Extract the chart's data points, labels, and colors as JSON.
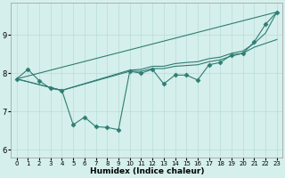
{
  "xlabel": "Humidex (Indice chaleur)",
  "ylabel": "",
  "bg_color": "#d5efec",
  "line_color": "#2e7d72",
  "grid_color": "#b8ddd9",
  "xlim": [
    -0.5,
    23.5
  ],
  "ylim": [
    5.8,
    9.85
  ],
  "yticks": [
    6,
    7,
    8,
    9
  ],
  "xticks": [
    0,
    1,
    2,
    3,
    4,
    5,
    6,
    7,
    8,
    9,
    10,
    11,
    12,
    13,
    14,
    15,
    16,
    17,
    18,
    19,
    20,
    21,
    22,
    23
  ],
  "lines": [
    {
      "x": [
        0,
        1,
        2,
        3,
        4,
        5,
        6,
        7,
        8,
        9,
        10,
        11,
        12,
        13,
        14,
        15,
        16,
        17,
        18,
        19,
        20,
        21,
        22,
        23
      ],
      "y": [
        7.85,
        8.1,
        7.8,
        7.6,
        7.55,
        6.65,
        6.85,
        6.6,
        6.58,
        6.52,
        8.05,
        8.0,
        8.1,
        7.72,
        7.95,
        7.95,
        7.82,
        8.22,
        8.28,
        8.48,
        8.52,
        8.82,
        9.28,
        9.6
      ],
      "marker": "D",
      "markersize": 2.5,
      "lw": 0.8
    },
    {
      "x": [
        0,
        23
      ],
      "y": [
        7.85,
        9.6
      ],
      "marker": null,
      "markersize": 0,
      "lw": 0.8
    },
    {
      "x": [
        0,
        4,
        10,
        11,
        12,
        13,
        14,
        15,
        16,
        17,
        18,
        19,
        20,
        21,
        22,
        23
      ],
      "y": [
        7.85,
        7.55,
        8.05,
        8.05,
        8.12,
        8.12,
        8.18,
        8.2,
        8.22,
        8.3,
        8.35,
        8.45,
        8.52,
        8.68,
        8.78,
        8.88
      ],
      "marker": null,
      "markersize": 0,
      "lw": 0.8
    },
    {
      "x": [
        0,
        4,
        10,
        11,
        12,
        13,
        14,
        15,
        16,
        17,
        18,
        19,
        20,
        21,
        22,
        23
      ],
      "y": [
        7.85,
        7.55,
        8.08,
        8.1,
        8.18,
        8.18,
        8.25,
        8.28,
        8.3,
        8.38,
        8.42,
        8.52,
        8.58,
        8.78,
        9.05,
        9.6
      ],
      "marker": null,
      "markersize": 0,
      "lw": 0.8
    }
  ]
}
